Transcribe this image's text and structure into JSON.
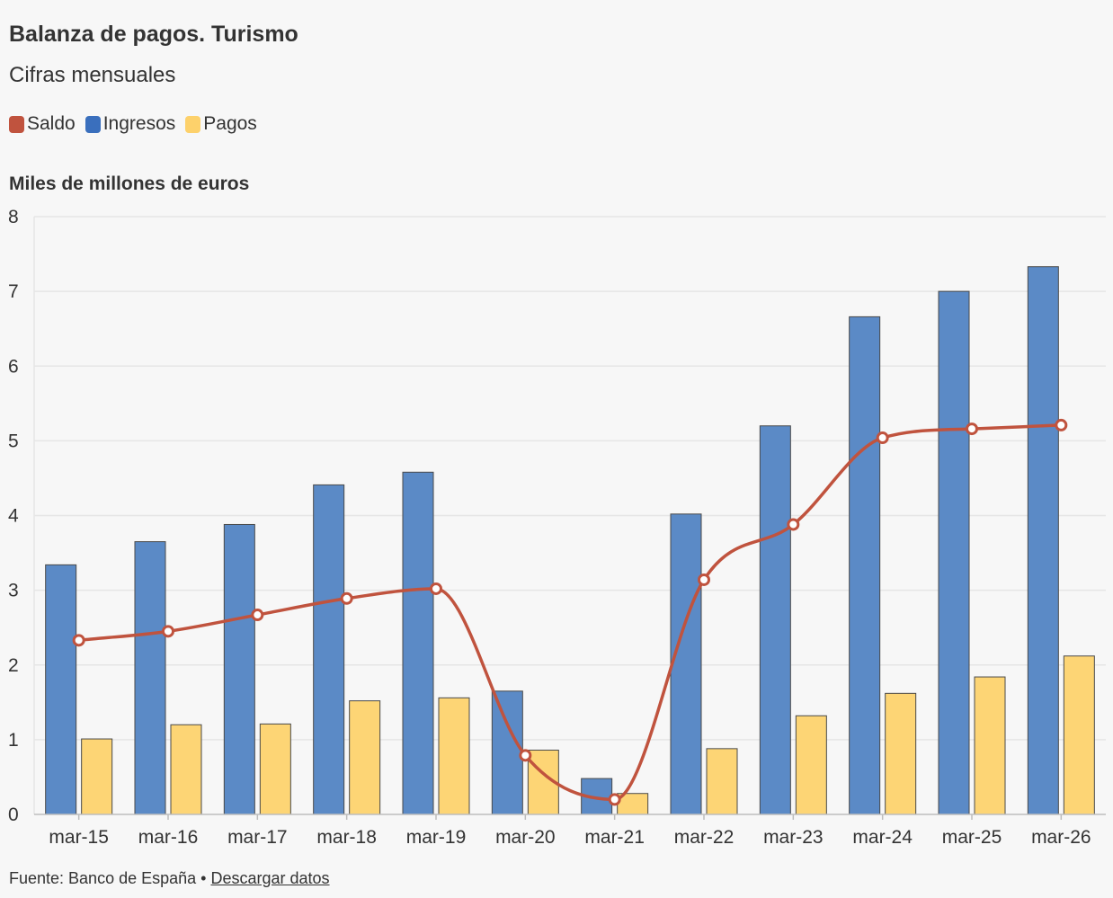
{
  "header": {
    "title": "Balanza de pagos. Turismo",
    "subtitle": "Cifras mensuales"
  },
  "legend": [
    {
      "label": "Saldo",
      "color": "#c0533e"
    },
    {
      "label": "Ingresos",
      "color": "#3a6fbd"
    },
    {
      "label": "Pagos",
      "color": "#fdd16b"
    }
  ],
  "footer": {
    "source": "Fuente: Banco de España",
    "separator": " • ",
    "link": "Descargar datos"
  },
  "chart_data": {
    "type": "bar",
    "ylabel": "Miles de millones de euros",
    "ylim": [
      0,
      8
    ],
    "yticks": [
      0,
      1,
      2,
      3,
      4,
      5,
      6,
      7,
      8
    ],
    "grid": true,
    "legend_position": "top-left",
    "categories": [
      "mar-15",
      "mar-16",
      "mar-17",
      "mar-18",
      "mar-19",
      "mar-20",
      "mar-21",
      "mar-22",
      "mar-23",
      "mar-24",
      "mar-25",
      "mar-26"
    ],
    "series": [
      {
        "name": "Ingresos",
        "type": "bar",
        "color": "#5b8ac6",
        "values": [
          3.34,
          3.65,
          3.88,
          4.41,
          4.58,
          1.65,
          0.48,
          4.02,
          5.2,
          6.66,
          7.0,
          7.33
        ]
      },
      {
        "name": "Pagos",
        "type": "bar",
        "color": "#fdd575",
        "values": [
          1.01,
          1.2,
          1.21,
          1.52,
          1.56,
          0.86,
          0.28,
          0.88,
          1.32,
          1.62,
          1.84,
          2.12
        ]
      },
      {
        "name": "Saldo",
        "type": "line",
        "color": "#c0533e",
        "values": [
          2.33,
          2.45,
          2.67,
          2.89,
          3.02,
          0.79,
          0.2,
          3.14,
          3.88,
          5.04,
          5.16,
          5.21
        ]
      }
    ]
  }
}
